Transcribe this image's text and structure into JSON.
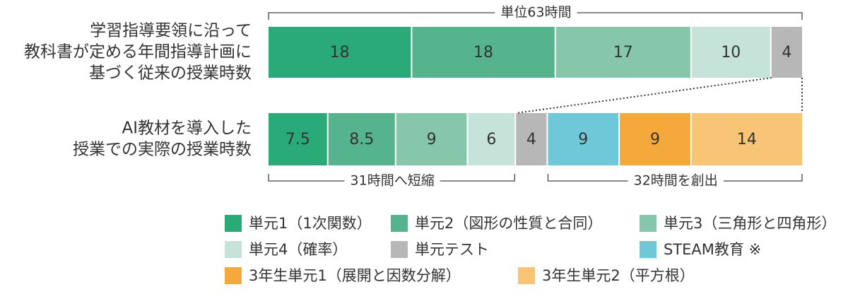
{
  "chart_data": {
    "type": "stacked-bar-horizontal",
    "categories": [
      [
        "学習指導要領に沿って",
        "教科書が定める年間指導計画に",
        "基づく従来の授業時数"
      ],
      [
        "AI教材を導入した",
        "授業での実際の授業時数"
      ]
    ],
    "series": [
      {
        "name": "単元1（1次関数）",
        "color": "#2aaa78",
        "values": [
          18,
          7.5
        ]
      },
      {
        "name": "単元2（図形の性質と合同）",
        "color": "#55b48e",
        "values": [
          18,
          8.5
        ]
      },
      {
        "name": "単元3（三角形と四角形）",
        "color": "#86c6aa",
        "values": [
          17,
          9
        ]
      },
      {
        "name": "単元4（確率）",
        "color": "#c5e3d8",
        "values": [
          10,
          6
        ]
      },
      {
        "name": "単元テスト",
        "color": "#b7b7b7",
        "values": [
          4,
          4
        ]
      },
      {
        "name": "STEAM教育 ※",
        "color": "#6ec8d8",
        "values": [
          null,
          9
        ]
      },
      {
        "name": "3年生単元1（展開と因数分解）",
        "color": "#f4a93a",
        "values": [
          null,
          9
        ]
      },
      {
        "name": "3年生単元2（平方根）",
        "color": "#f8c577",
        "values": [
          null,
          14
        ]
      }
    ],
    "annotations": [
      "単位63時間",
      "31時間へ短縮",
      "32時間を創出"
    ]
  }
}
